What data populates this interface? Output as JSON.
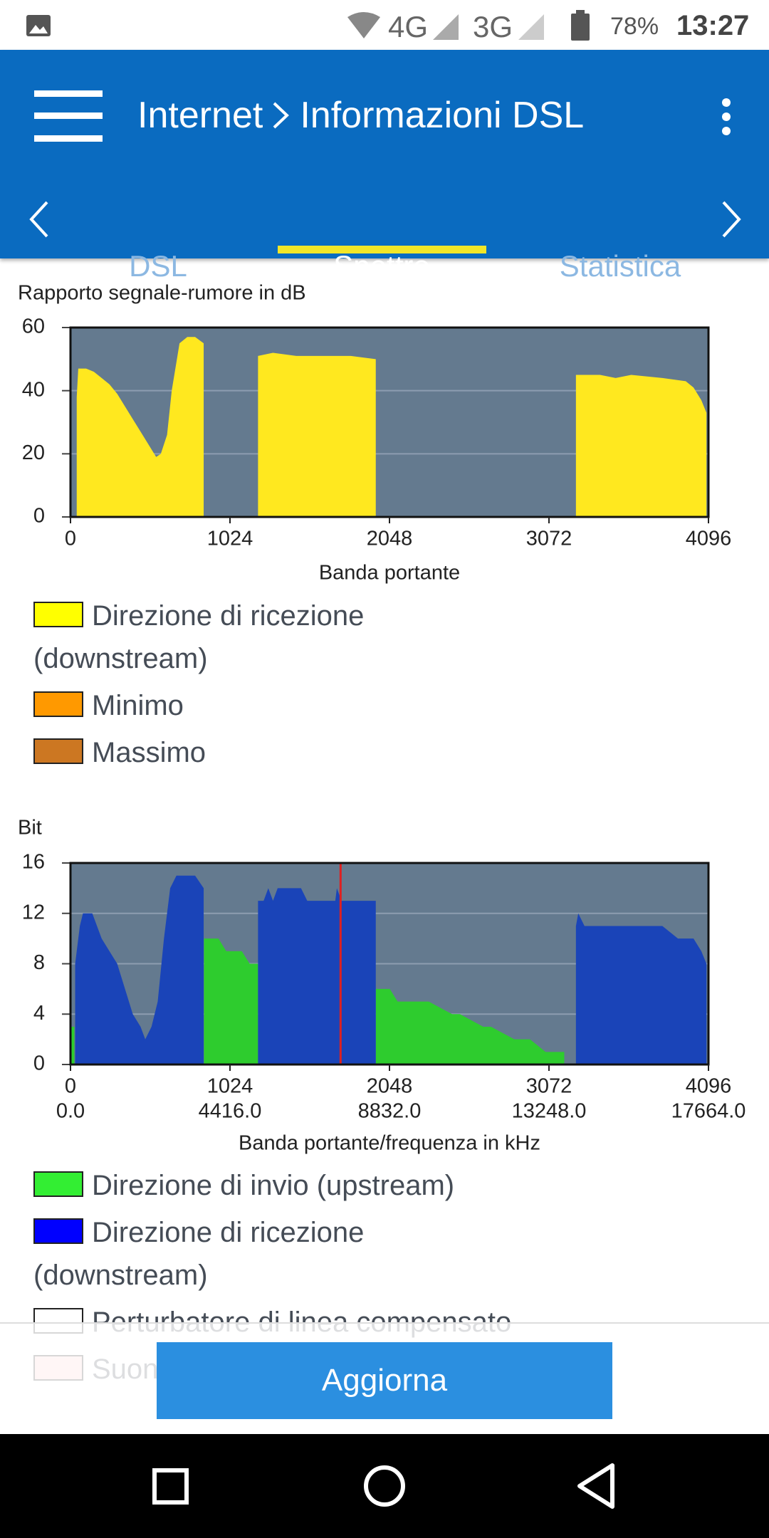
{
  "status_bar": {
    "network1": "4G",
    "network2": "3G",
    "battery": "78%",
    "time": "13:27"
  },
  "app_bar": {
    "breadcrumb": [
      "Internet",
      "Informazioni DSL"
    ]
  },
  "tabs": [
    {
      "label": "DSL",
      "selected": false
    },
    {
      "label": "Spettro",
      "selected": true
    },
    {
      "label": "Statistica",
      "selected": false
    }
  ],
  "charts": [
    {
      "type": "area",
      "title": "Rapporto segnale-rumore in dB",
      "xlabel": "Banda portante",
      "xlim": [
        0,
        4096
      ],
      "xticks": [
        0,
        1024,
        2048,
        3072,
        4096
      ],
      "ylim": [
        0,
        60
      ],
      "yticks": [
        0,
        20,
        40,
        60
      ],
      "grid": true,
      "background": "#647a8f",
      "series": [
        {
          "name": "Direzione di ricezione (downstream)",
          "color": "#ffe81f",
          "legend_color": "#ffff00",
          "x": [
            40,
            50,
            100,
            150,
            200,
            250,
            300,
            350,
            400,
            450,
            500,
            550,
            580,
            620,
            650,
            700,
            750,
            800,
            855,
            null,
            1204,
            1300,
            1450,
            1600,
            1800,
            1960,
            null,
            3245,
            3400,
            3500,
            3600,
            3800,
            3950,
            4000,
            4050,
            4083
          ],
          "values": [
            38,
            47,
            47,
            46,
            44,
            42,
            39,
            35,
            31,
            27,
            23,
            19,
            20,
            26,
            40,
            55,
            57,
            57,
            55,
            null,
            51,
            52,
            51,
            51,
            51,
            50,
            null,
            45,
            45,
            44,
            45,
            44,
            43,
            41,
            37,
            33
          ]
        }
      ],
      "legend_extra": [
        {
          "name": "Minimo",
          "color": "#ff9900"
        },
        {
          "name": "Massimo",
          "color": "#cc7722"
        }
      ]
    },
    {
      "type": "area",
      "title": "Bit",
      "xlabel": "Banda portante/frequenza in kHz",
      "xlim": [
        0,
        4096
      ],
      "xticks": [
        0,
        1024,
        2048,
        3072,
        4096
      ],
      "x2lim": [
        0,
        17664
      ],
      "x2ticks": [
        {
          "value": 0,
          "label": "0.0"
        },
        {
          "value": 4416,
          "label": "4416.0"
        },
        {
          "value": 8832,
          "label": "8832.0"
        },
        {
          "value": 13248,
          "label": "13248.0"
        },
        {
          "value": 17664,
          "label": "17664.0"
        }
      ],
      "ylim": [
        0,
        16
      ],
      "yticks": [
        0,
        4,
        8,
        12,
        16
      ],
      "grid": true,
      "background": "#647a8f",
      "series": [
        {
          "name": "Direzione di invio (upstream)",
          "color": "#2ecc2e",
          "legend_color": "#33ee33",
          "x": [
            5,
            25,
            null,
            857,
            950,
            1000,
            1100,
            1150,
            1204,
            null,
            1960,
            2050,
            2100,
            2300,
            2450,
            2500,
            2650,
            2700,
            2850,
            2950,
            3050,
            3100,
            3170
          ],
          "values": [
            3,
            3,
            null,
            10,
            10,
            9,
            9,
            8,
            8,
            null,
            6,
            6,
            5,
            5,
            4,
            4,
            3,
            3,
            2,
            2,
            1,
            1,
            1
          ]
        },
        {
          "name": "Direzione di ricezione (downstream)",
          "color": "#1a44b8",
          "legend_color": "#0000ff",
          "x": [
            30,
            60,
            80,
            140,
            200,
            250,
            300,
            350,
            400,
            450,
            480,
            520,
            560,
            600,
            640,
            680,
            800,
            855,
            null,
            1204,
            1240,
            1270,
            1300,
            1330,
            1480,
            1520,
            1700,
            1710,
            1740,
            1960,
            null,
            3245,
            3260,
            3300,
            3500,
            3800,
            3900,
            4000,
            4050,
            4083
          ],
          "values": [
            8,
            11,
            12,
            12,
            10,
            9,
            8,
            6,
            4,
            3,
            2,
            3,
            5,
            10,
            14,
            15,
            15,
            14,
            null,
            13,
            13,
            14,
            13,
            14,
            14,
            13,
            13,
            14,
            13,
            13,
            null,
            11,
            12,
            11,
            11,
            11,
            10,
            10,
            9,
            8
          ]
        }
      ],
      "vertical_line": {
        "x": 1734,
        "color": "#e02020"
      },
      "legend_extra": [
        {
          "name": "Perturbatore di linea compensato",
          "color": "#ffffff"
        },
        {
          "name": "Suoni pilota",
          "color": "#ffcccc"
        }
      ]
    }
  ],
  "button": {
    "label": "Aggiorna"
  }
}
